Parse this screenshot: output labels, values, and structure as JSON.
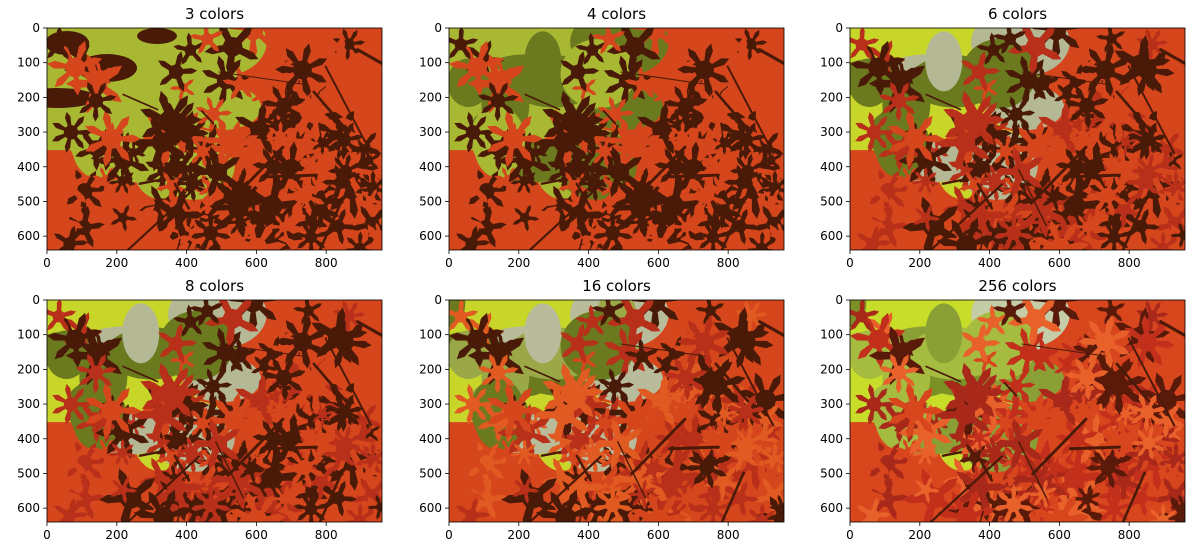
{
  "figure": {
    "panels": [
      {
        "title": "3 colors",
        "levels": 3
      },
      {
        "title": "4 colors",
        "levels": 4
      },
      {
        "title": "6 colors",
        "levels": 6
      },
      {
        "title": "8 colors",
        "levels": 8
      },
      {
        "title": "16 colors",
        "levels": 16
      },
      {
        "title": "256 colors",
        "levels": 256
      }
    ],
    "axes": {
      "xlim": [
        0,
        960
      ],
      "ylim": [
        640,
        0
      ],
      "xticks": [
        "0",
        "200",
        "400",
        "600",
        "800"
      ],
      "yticks": [
        "0",
        "100",
        "200",
        "300",
        "400",
        "500",
        "600"
      ]
    },
    "palette": {
      "background_green": "#a8b832",
      "olive": "#6b7a1e",
      "leaf_orange": "#d6461c",
      "leaf_red": "#b8301a",
      "dark_brown": "#4a1a08",
      "highlight": "#c8d62a"
    }
  }
}
